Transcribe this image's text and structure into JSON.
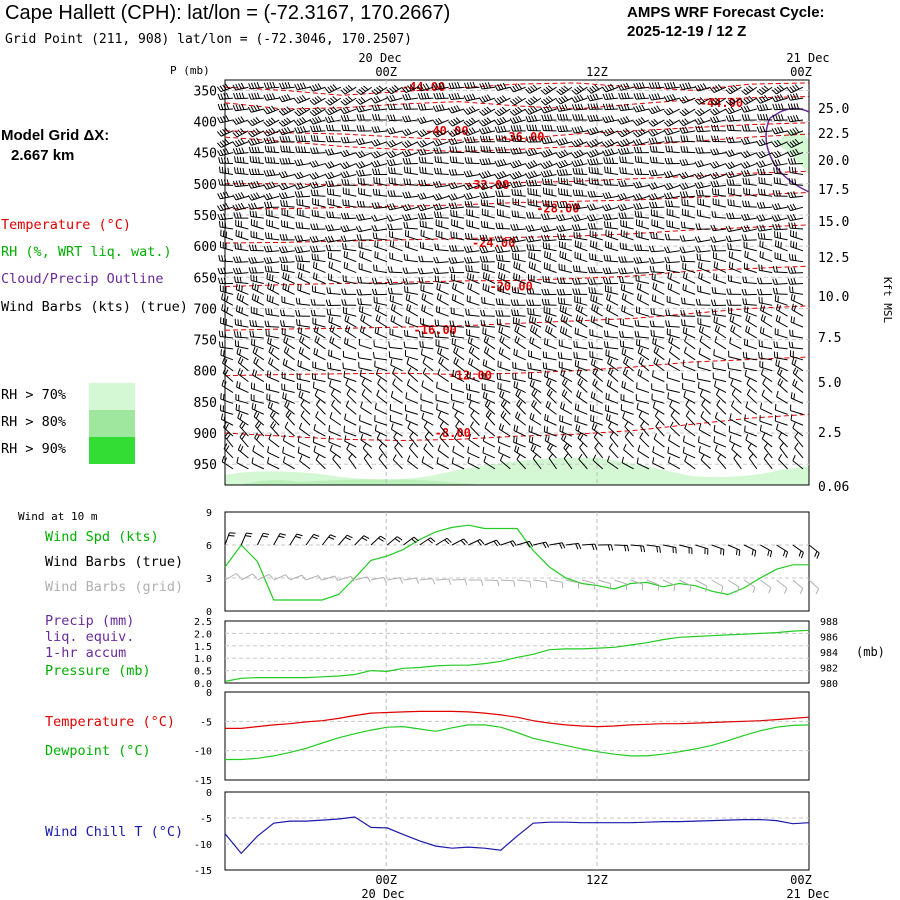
{
  "header": {
    "title": "Cape Hallett (CPH):  lat/lon = (-72.3167, 170.2667)",
    "grid_point": "Grid Point (211, 908) lat/lon = (-72.3046, 170.2507)",
    "forecast_line1": "AMPS WRF Forecast Cycle:",
    "forecast_line2": "2025-12-19 / 12  Z",
    "model_grid_label": "Model Grid ΔX:",
    "model_grid_value": "2.667 km"
  },
  "time_axis": {
    "top_date_left": "20 Dec",
    "top_date_right": "21 Dec",
    "ticks": [
      "00Z",
      "12Z",
      "00Z"
    ],
    "bottom_date_left": "20 Dec",
    "bottom_date_right": "21 Dec"
  },
  "legend": {
    "temperature": "Temperature (°C)",
    "rh": "RH (%, WRT liq. wat.)",
    "cloud": "Cloud/Precip Outline",
    "wind_barbs": "Wind Barbs (kts) (true)",
    "rh70": "RH > 70%",
    "rh80": "RH > 80%",
    "rh90": "RH > 90%",
    "rh_colors": [
      "#d4f7d4",
      "#9fe69f",
      "#33dd33"
    ]
  },
  "colors": {
    "temperature": "#e00000",
    "green": "#22cc22",
    "purple": "#6a2a9c",
    "blue": "#1a1aaa",
    "grey": "#b0b0b0"
  },
  "chart_data": [
    {
      "type": "line",
      "panel": "sounding",
      "ylabel_left": "P (mb)",
      "ylabel_right": "Kft MSL",
      "pressure_ticks": [
        "350",
        "400",
        "450",
        "500",
        "550",
        "600",
        "650",
        "700",
        "750",
        "800",
        "850",
        "900",
        "950"
      ],
      "height_ticks": [
        "25.0",
        "22.5",
        "20.0",
        "17.5",
        "15.0",
        "12.5",
        "10.0",
        "7.5",
        "5.0",
        "2.5",
        "0.06"
      ],
      "isotherm_labels": [
        {
          "text": "-44.00",
          "x": 0.34,
          "p": 345
        },
        {
          "text": "-44.00",
          "x": 0.85,
          "p": 370
        },
        {
          "text": "-40.00",
          "x": 0.38,
          "p": 415
        },
        {
          "text": "-36.00",
          "x": 0.51,
          "p": 425
        },
        {
          "text": "-32.00",
          "x": 0.45,
          "p": 502
        },
        {
          "text": "-28.00",
          "x": 0.57,
          "p": 540
        },
        {
          "text": "-24.00",
          "x": 0.46,
          "p": 595
        },
        {
          "text": "-20.00",
          "x": 0.49,
          "p": 665
        },
        {
          "text": "-16.00",
          "x": 0.36,
          "p": 735
        },
        {
          "text": "-12.00",
          "x": 0.42,
          "p": 808
        },
        {
          "text": "-8.00",
          "x": 0.39,
          "p": 900
        }
      ]
    },
    {
      "type": "line",
      "panel": "wind10m",
      "title": "Wind at 10 m",
      "legend": [
        "Wind Spd (kts)",
        "Wind Barbs (true)",
        "Wind Barbs (grid)"
      ],
      "ylim": [
        0,
        9
      ],
      "yticks": [
        "9",
        "6",
        "3",
        "0"
      ],
      "x": [
        0,
        1,
        2,
        3,
        4,
        5,
        6,
        7,
        8,
        9,
        10,
        11,
        12,
        13,
        14,
        15,
        16,
        17,
        18,
        19,
        20,
        21,
        22,
        23,
        24,
        25,
        26,
        27,
        28,
        29,
        30,
        31,
        32,
        33,
        34,
        35,
        36
      ],
      "values": [
        4,
        6,
        4.5,
        1,
        1,
        1,
        1,
        1.5,
        3,
        4.6,
        5,
        5.6,
        6.5,
        7.2,
        7.6,
        7.8,
        7.5,
        7.5,
        7.5,
        5.5,
        4,
        3,
        2.5,
        2.3,
        2,
        2.5,
        2.6,
        2.2,
        2.5,
        2.3,
        1.8,
        1.5,
        2.1,
        3,
        3.8,
        4.2,
        4.2
      ]
    },
    {
      "type": "line",
      "panel": "precip_pressure",
      "legend": [
        "Precip (mm)",
        "liq. equiv.",
        "1-hr accum",
        "Pressure (mb)"
      ],
      "ylim_left": [
        0,
        2.5
      ],
      "yticks_left": [
        "2.5",
        "2.0",
        "1.5",
        "1.0",
        "0.5",
        "0.0"
      ],
      "yticks_right": [
        "988",
        "986",
        "984",
        "982",
        "980"
      ],
      "unit_right": "(mb)",
      "ylim_right": [
        980,
        988
      ],
      "x": [
        0,
        1,
        2,
        3,
        4,
        5,
        6,
        7,
        8,
        9,
        10,
        11,
        12,
        13,
        14,
        15,
        16,
        17,
        18,
        19,
        20,
        21,
        22,
        23,
        24,
        25,
        26,
        27,
        28,
        29,
        30,
        31,
        32,
        33,
        34,
        35,
        36
      ],
      "pressure": [
        980.2,
        980.6,
        980.7,
        980.7,
        980.7,
        980.7,
        980.8,
        980.9,
        981.1,
        981.6,
        981.5,
        981.9,
        982.0,
        982.2,
        982.3,
        982.3,
        982.5,
        982.8,
        983.3,
        983.7,
        984.3,
        984.4,
        984.4,
        984.5,
        984.6,
        984.9,
        985.2,
        985.6,
        985.9,
        986.0,
        986.1,
        986.2,
        986.3,
        986.4,
        986.5,
        986.7,
        986.8
      ]
    },
    {
      "type": "line",
      "panel": "temperature",
      "legend": [
        "Temperature (°C)",
        "Dewpoint (°C)"
      ],
      "ylim": [
        -15,
        0
      ],
      "yticks": [
        "0",
        "-5",
        "-10",
        "-15"
      ],
      "x": [
        0,
        1,
        2,
        3,
        4,
        5,
        6,
        7,
        8,
        9,
        10,
        11,
        12,
        13,
        14,
        15,
        16,
        17,
        18,
        19,
        20,
        21,
        22,
        23,
        24,
        25,
        26,
        27,
        28,
        29,
        30,
        31,
        32,
        33,
        34,
        35,
        36
      ],
      "temperature": [
        -6.2,
        -6.2,
        -5.9,
        -5.6,
        -5.4,
        -5.1,
        -4.9,
        -4.5,
        -4.0,
        -3.6,
        -3.5,
        -3.4,
        -3.3,
        -3.3,
        -3.3,
        -3.4,
        -3.6,
        -3.9,
        -4.3,
        -4.9,
        -5.3,
        -5.6,
        -5.8,
        -5.9,
        -5.8,
        -5.6,
        -5.5,
        -5.4,
        -5.4,
        -5.3,
        -5.2,
        -5.1,
        -5.0,
        -4.9,
        -4.7,
        -4.5,
        -4.3
      ],
      "dewpoint": [
        -11.5,
        -11.5,
        -11.3,
        -10.9,
        -10.3,
        -9.6,
        -8.7,
        -7.8,
        -7.1,
        -6.5,
        -6.0,
        -5.9,
        -6.3,
        -6.7,
        -6.1,
        -5.6,
        -5.6,
        -6.0,
        -6.9,
        -7.9,
        -8.5,
        -9.1,
        -9.7,
        -10.2,
        -10.6,
        -10.9,
        -10.9,
        -10.6,
        -10.2,
        -9.7,
        -9.1,
        -8.3,
        -7.4,
        -6.6,
        -6.0,
        -5.7,
        -5.6
      ]
    },
    {
      "type": "line",
      "panel": "windchill",
      "legend": [
        "Wind Chill T (°C)"
      ],
      "ylim": [
        -15,
        0
      ],
      "yticks": [
        "0",
        "-5",
        "-10",
        "-15"
      ],
      "x": [
        0,
        1,
        2,
        3,
        4,
        5,
        6,
        7,
        8,
        9,
        10,
        11,
        12,
        13,
        14,
        15,
        16,
        17,
        18,
        19,
        20,
        21,
        22,
        23,
        24,
        25,
        26,
        27,
        28,
        29,
        30,
        31,
        32,
        33,
        34,
        35,
        36
      ],
      "values": [
        -8,
        -11.8,
        -8.5,
        -6,
        -5.6,
        -5.6,
        -5.4,
        -5.2,
        -4.8,
        -6.8,
        -6.9,
        -8.2,
        -9.4,
        -10.4,
        -10.8,
        -10.6,
        -10.8,
        -11.2,
        -8.5,
        -6,
        -5.8,
        -5.8,
        -5.9,
        -5.9,
        -5.9,
        -5.9,
        -5.8,
        -5.7,
        -5.7,
        -5.6,
        -5.5,
        -5.4,
        -5.3,
        -5.3,
        -5.5,
        -6.1,
        -5.9
      ]
    }
  ]
}
